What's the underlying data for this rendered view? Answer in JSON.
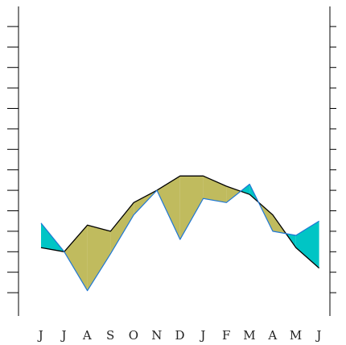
{
  "chart_data": {
    "type": "line",
    "title": "",
    "xlabel": "",
    "ylabel": "",
    "categories": [
      "J",
      "J",
      "A",
      "S",
      "O",
      "N",
      "D",
      "J",
      "F",
      "M",
      "A",
      "M",
      "J"
    ],
    "ylim": [
      0,
      14
    ],
    "yticks": [
      1,
      2,
      3,
      4,
      5,
      6,
      7,
      8,
      9,
      10,
      11,
      12,
      13,
      14
    ],
    "ytick_labels_shown": false,
    "grid": false,
    "legend": "none",
    "series": [
      {
        "name": "",
        "color": "#000000",
        "values": [
          3.2,
          3.0,
          4.3,
          4.0,
          5.4,
          6.0,
          6.7,
          6.7,
          6.2,
          5.8,
          4.8,
          3.2,
          2.2
        ]
      },
      {
        "name": "",
        "color": "#1f77d4",
        "values": [
          4.4,
          3.0,
          1.1,
          2.9,
          4.8,
          6.0,
          3.6,
          5.6,
          5.4,
          6.3,
          4.0,
          3.8,
          4.5
        ]
      }
    ],
    "fills": {
      "above_color": "#00c5c5",
      "below_color": "#c0bb5e"
    }
  }
}
